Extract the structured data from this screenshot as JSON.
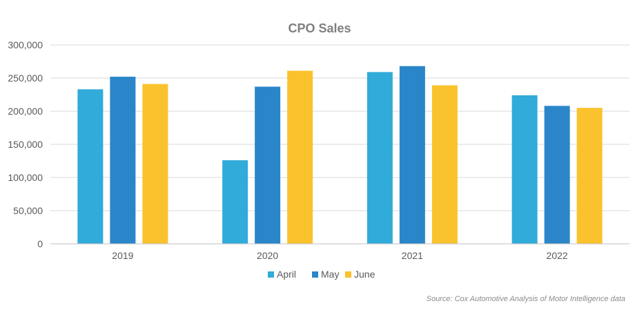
{
  "chart_data": {
    "type": "bar",
    "title": "CPO Sales",
    "categories": [
      "2019",
      "2020",
      "2021",
      "2022"
    ],
    "series": [
      {
        "name": "April",
        "color": "#31ABD9",
        "values": [
          233000,
          126000,
          259000,
          224000
        ]
      },
      {
        "name": "May",
        "color": "#2A86C8",
        "values": [
          252000,
          237000,
          268000,
          208000
        ]
      },
      {
        "name": "June",
        "color": "#FAC22C",
        "values": [
          241000,
          261000,
          239000,
          205000
        ]
      }
    ],
    "ylim": [
      0,
      300000
    ],
    "yticks": [
      "0",
      "50,000",
      "100,000",
      "150,000",
      "200,000",
      "250,000",
      "300,000"
    ],
    "xlabel": "",
    "ylabel": "",
    "grid": true,
    "legend_position": "bottom"
  },
  "source": "Source: Cox Automotive Analysis of Motor Intelligence data"
}
